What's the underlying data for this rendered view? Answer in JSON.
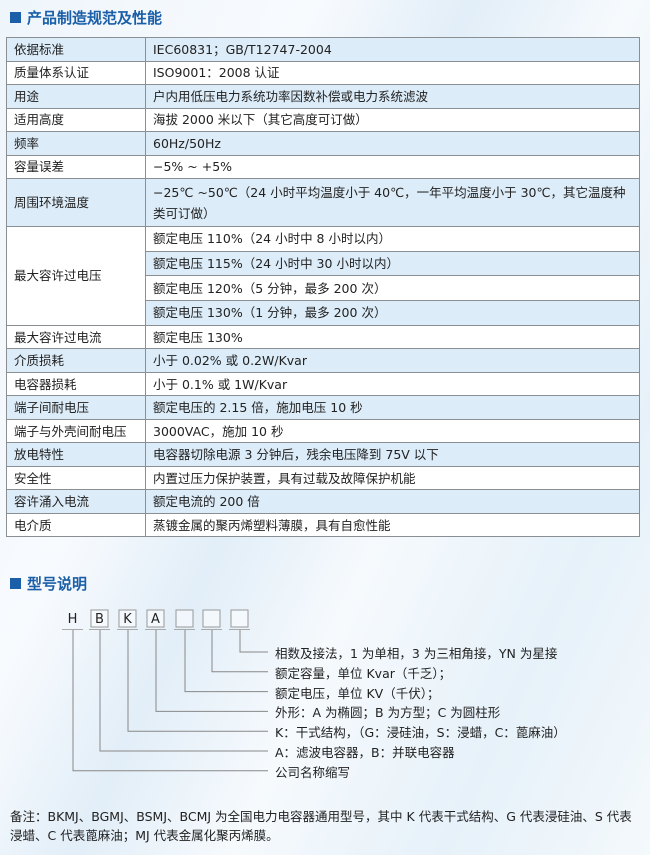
{
  "spec": {
    "title": "产品制造规范及性能",
    "rows": [
      {
        "k": "依据标准",
        "v": "IEC60831；GB/T12747-2004"
      },
      {
        "k": "质量体系认证",
        "v": "ISO9001：2008 认证"
      },
      {
        "k": "用途",
        "v": "户内用低压电力系统功率因数补偿或电力系统滤波"
      },
      {
        "k": "适用高度",
        "v": "海拔 2000 米以下（其它高度可订做）"
      },
      {
        "k": "频率",
        "v": "60Hz/50Hz"
      },
      {
        "k": "容量误差",
        "v": "−5% ~ +5%"
      },
      {
        "k": "周围环境温度",
        "v": "−25℃ ~50℃（24 小时平均温度小于 40℃，一年平均温度小于 30℃，其它温度种类可订做）"
      }
    ],
    "overvoltage": {
      "k": "最大容许过电压",
      "v": [
        "额定电压 110%（24 小时中 8 小时以内）",
        "额定电压 115%（24 小时中 30 小时以内）",
        "额定电压 120%（5 分钟，最多 200 次）",
        "额定电压 130%（1 分钟，最多 200 次）"
      ]
    },
    "rows2": [
      {
        "k": "最大容许过电流",
        "v": "额定电压 130%"
      },
      {
        "k": "介质损耗",
        "v": "小于 0.02% 或 0.2W/Kvar"
      },
      {
        "k": "电容器损耗",
        "v": "小于 0.1% 或 1W/Kvar"
      },
      {
        "k": "端子间耐电压",
        "v": "额定电压的 2.15 倍，施加电压 10 秒"
      },
      {
        "k": "端子与外壳间耐电压",
        "v": "3000VAC，施加 10 秒"
      },
      {
        "k": "放电特性",
        "v": "电容器切除电源 3 分钟后，残余电压降到 75V 以下"
      },
      {
        "k": "安全性",
        "v": "内置过压力保护装置，具有过载及故障保护机能"
      },
      {
        "k": "容许涌入电流",
        "v": "额定电流的 200 倍"
      },
      {
        "k": "电介质",
        "v": "蒸镀金属的聚丙烯塑料薄膜，具有自愈性能"
      }
    ]
  },
  "model": {
    "title": "型号说明",
    "letters": [
      "H",
      "B",
      "K",
      "A",
      "",
      "",
      ""
    ],
    "labels": [
      "相数及接法，1 为单相，3 为三相角接，YN 为星接",
      "额定容量，单位 Kvar（千乏）；",
      "额定电压，单位 KV（千伏）；",
      "外形：A 为椭圆；B 为方型；C 为圆柱形",
      "K：干式结构，（G：浸硅油，S：浸蜡，C：蓖麻油）",
      "A：滤波电容器，B：并联电容器",
      "公司名称缩写"
    ]
  },
  "note": "备注：BKMJ、BGMJ、BSMJ、BCMJ 为全国电力电容器通用型号，其中 K 代表干式结构、G 代表浸硅油、S 代表浸蜡、C 代表蓖麻油；MJ 代表金属化聚丙烯膜。",
  "colors": {
    "accent": "#1a5fa8",
    "row_alt": "#dcecf8"
  }
}
